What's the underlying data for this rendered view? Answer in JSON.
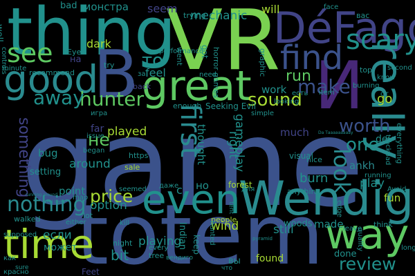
{
  "palette": {
    "background": "#000000",
    "lime": "#a8db34",
    "green": "#5ec962",
    "teal": "#21918c",
    "cyan": "#2a8b8f",
    "blue": "#3b528b",
    "slate": "#414487",
    "purple": "#482878",
    "deep": "#440154"
  },
  "words": [
    {
      "text": "game",
      "c": "#3b528b"
    },
    {
      "text": "totem",
      "c": "#3b528b"
    },
    {
      "text": "VR",
      "c": "#7ad151"
    },
    {
      "text": "thing",
      "c": "#21918c"
    },
    {
      "text": "В",
      "c": "#3b528b"
    },
    {
      "text": "И",
      "c": "#482878"
    },
    {
      "text": "DéFago",
      "c": "#414487"
    },
    {
      "text": "Wendigo",
      "c": "#2a8b8f"
    },
    {
      "text": "great",
      "c": "#5ec962"
    },
    {
      "text": "good",
      "c": "#2a8b8f"
    },
    {
      "text": "time",
      "c": "#a8db34"
    },
    {
      "text": "even",
      "c": "#21918c"
    },
    {
      "text": "way",
      "c": "#5ec962"
    },
    {
      "text": "find",
      "c": "#3b528b"
    },
    {
      "text": "see",
      "c": "#5ec962"
    },
    {
      "text": "really",
      "c": "#2a8b8f"
    },
    {
      "text": "scary",
      "c": "#21918c"
    },
    {
      "text": "hunter",
      "c": "#5ec962"
    },
    {
      "text": "sound",
      "c": "#a8db34"
    },
    {
      "text": "make",
      "c": "#3b528b"
    },
    {
      "text": "away",
      "c": "#21918c"
    },
    {
      "text": "first",
      "c": "#2a8b8f"
    },
    {
      "text": "nothing",
      "c": "#2a8b8f"
    },
    {
      "text": "price",
      "c": "#a8db34"
    },
    {
      "text": "review",
      "c": "#21918c"
    },
    {
      "text": "something",
      "c": "#414487"
    },
    {
      "text": "worth",
      "c": "#3b528b"
    },
    {
      "text": "one",
      "c": "#21918c"
    },
    {
      "text": "look",
      "c": "#2a8b8f"
    },
    {
      "text": "run",
      "c": "#5ec962"
    },
    {
      "text": "то",
      "c": "#21918c"
    },
    {
      "text": "не",
      "c": "#5ec962"
    },
    {
      "text": "played",
      "c": "#a8db34"
    },
    {
      "text": "around",
      "c": "#21918c"
    },
    {
      "text": "option",
      "c": "#21918c"
    },
    {
      "text": "playing",
      "c": "#21918c"
    },
    {
      "text": "ankh",
      "c": "#2a8b8f"
    },
    {
      "text": "burn",
      "c": "#21918c"
    },
    {
      "text": "play",
      "c": "#21918c"
    },
    {
      "text": "go",
      "c": "#a8db34"
    },
    {
      "text": "bit",
      "c": "#21918c"
    },
    {
      "text": "found",
      "c": "#a8db34"
    },
    {
      "text": "work",
      "c": "#21918c"
    },
    {
      "text": "feel",
      "c": "#21918c"
    },
    {
      "text": "dark",
      "c": "#a8db34"
    },
    {
      "text": "much",
      "c": "#414487"
    },
    {
      "text": "fun",
      "c": "#a8db34"
    },
    {
      "text": "dev",
      "c": "#21918c"
    },
    {
      "text": "wind",
      "c": "#a8db34"
    },
    {
      "text": "still",
      "c": "#21918c"
    },
    {
      "text": "made",
      "c": "#21918c"
    },
    {
      "text": "done",
      "c": "#21918c"
    },
    {
      "text": "point",
      "c": "#21918c"
    },
    {
      "text": "right",
      "c": "#21918c"
    },
    {
      "text": "gameplay",
      "c": "#21918c"
    },
    {
      "text": "thought",
      "c": "#21918c"
    },
    {
      "text": "woods",
      "c": "#21918c"
    },
    {
      "text": "mechanic",
      "c": "#21918c"
    },
    {
      "text": "монстра",
      "c": "#21918c"
    },
    {
      "text": "seem",
      "c": "#414487"
    },
    {
      "text": "will",
      "c": "#a8db34"
    },
    {
      "text": "bad",
      "c": "#21918c"
    },
    {
      "text": "на",
      "c": "#414487"
    },
    {
      "text": "если",
      "c": "#21918c"
    },
    {
      "text": "может",
      "c": "#21918c"
    },
    {
      "text": "c",
      "c": "#21918c"
    },
    {
      "text": "но",
      "c": "#21918c"
    },
    {
      "text": "вы",
      "c": "#21918c"
    },
    {
      "text": "Indian",
      "c": "#21918c"
    },
    {
      "text": "keep",
      "c": "#21918c"
    },
    {
      "text": "bug",
      "c": "#21918c"
    },
    {
      "text": "far",
      "c": "#414487"
    },
    {
      "text": "setting",
      "c": "#21918c"
    },
    {
      "text": "recommend",
      "c": "#21918c"
    },
    {
      "text": "well",
      "c": "#21918c"
    },
    {
      "text": "got",
      "c": "#21918c"
    },
    {
      "text": "horror games",
      "c": "#21918c"
    },
    {
      "text": "Seeking Evil",
      "c": "#21918c"
    },
    {
      "text": "enough",
      "c": "#21918c"
    },
    {
      "text": "people",
      "c": "#a8db34"
    },
    {
      "text": "night",
      "c": "#21918c"
    },
    {
      "text": "lot",
      "c": "#21918c"
    },
    {
      "text": "sale",
      "c": "#a8db34"
    },
    {
      "text": "https",
      "c": "#21918c"
    },
    {
      "text": "visual",
      "c": "#21918c"
    },
    {
      "text": "nice",
      "c": "#21918c"
    },
    {
      "text": "trying",
      "c": "#21918c"
    },
    {
      "text": "graphic",
      "c": "#21918c"
    },
    {
      "text": "controls",
      "c": "#21918c"
    },
    {
      "text": "need",
      "c": "#21918c"
    },
    {
      "text": "went",
      "c": "#21918c"
    },
    {
      "text": "simple",
      "c": "#21918c"
    },
    {
      "text": "item",
      "c": "#21918c"
    },
    {
      "text": "looking",
      "c": "#21918c"
    },
    {
      "text": "top",
      "c": "#21918c"
    },
    {
      "text": "know",
      "c": "#21918c"
    },
    {
      "text": "second",
      "c": "#21918c"
    },
    {
      "text": "burning",
      "c": "#21918c"
    },
    {
      "text": "face",
      "c": "#21918c"
    },
    {
      "text": "вас",
      "c": "#21918c"
    },
    {
      "text": "try",
      "c": "#21918c"
    },
    {
      "text": "Eye",
      "c": "#21918c"
    },
    {
      "text": "performance",
      "c": "#21918c"
    },
    {
      "text": "minute",
      "c": "#21918c"
    },
    {
      "text": "back",
      "c": "#414487"
    },
    {
      "text": "за",
      "c": "#21918c"
    },
    {
      "text": "игра",
      "c": "#21918c"
    },
    {
      "text": "есть",
      "c": "#21918c"
    },
    {
      "text": "от",
      "c": "#21918c"
    },
    {
      "text": "began",
      "c": "#21918c"
    },
    {
      "text": "issue",
      "c": "#21918c"
    },
    {
      "text": "seemed",
      "c": "#21918c"
    },
    {
      "text": "даже",
      "c": "#21918c"
    },
    {
      "text": "map",
      "c": "#21918c"
    },
    {
      "text": "walked",
      "c": "#21918c"
    },
    {
      "text": "supposed",
      "c": "#21918c"
    },
    {
      "text": "either",
      "c": "#21918c"
    },
    {
      "text": "kill",
      "c": "#21918c"
    },
    {
      "text": "every",
      "c": "#21918c"
    },
    {
      "text": "tree",
      "c": "#21918c"
    },
    {
      "text": "Feet",
      "c": "#414487"
    },
    {
      "text": "как",
      "c": "#21918c"
    },
    {
      "text": "forest",
      "c": "#a8db34"
    },
    {
      "text": "anything",
      "c": "#21918c"
    },
    {
      "text": "hunted",
      "c": "#21918c"
    },
    {
      "text": "для",
      "c": "#21918c"
    },
    {
      "text": "edge",
      "c": "#21918c"
    },
    {
      "text": "leave",
      "c": "#21918c"
    },
    {
      "text": "think",
      "c": "#21918c"
    },
    {
      "text": "quality",
      "c": "#21918c"
    },
    {
      "text": "running",
      "c": "#21918c"
    },
    {
      "text": "Avoid",
      "c": "#21918c"
    },
    {
      "text": "everything",
      "c": "#21918c"
    },
    {
      "text": "trackpad",
      "c": "#21918c"
    },
    {
      "text": "long",
      "c": "#21918c"
    },
    {
      "text": "красно",
      "c": "#21918c"
    },
    {
      "text": "вендиго",
      "c": "#21918c"
    },
    {
      "text": "Da Tаaaaaaaaay",
      "c": "#21918c"
    },
    {
      "text": "running around",
      "c": "#21918c"
    },
    {
      "text": "red light",
      "c": "#21918c"
    },
    {
      "text": "sure",
      "c": "#21918c"
    },
    {
      "text": "tent",
      "c": "#21918c"
    },
    {
      "text": "pyramid",
      "c": "#21918c"
    },
    {
      "text": "что",
      "c": "#21918c"
    }
  ]
}
